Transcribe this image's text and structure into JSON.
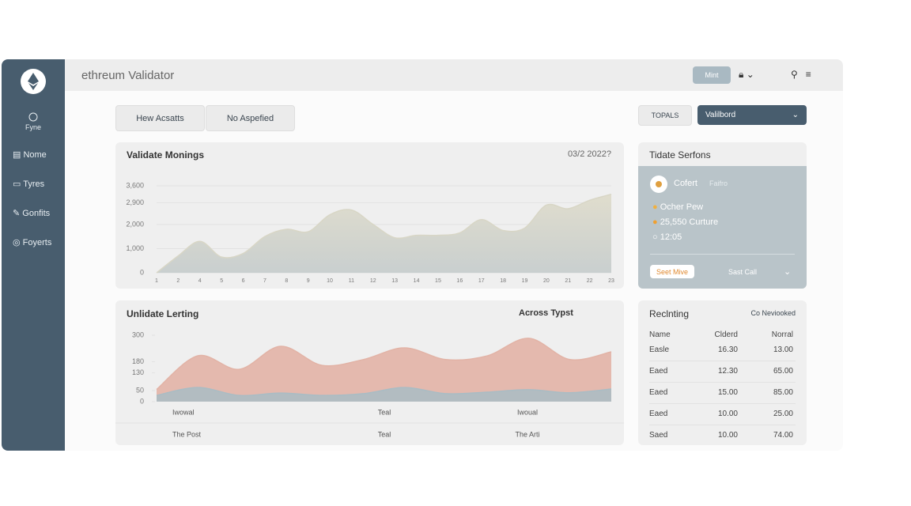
{
  "app": {
    "title": "ethreum Validator",
    "header_button": "Mint"
  },
  "sidebar": {
    "top_label": "Fyne",
    "items": [
      "Nome",
      "Tyres",
      "Gonfits",
      "Foyerts"
    ]
  },
  "toolbar": {
    "buttons": [
      "Hew Acsatts",
      "No Aspefied"
    ],
    "filter": "TOPALS",
    "dropdown": "Valilbord"
  },
  "chart_data": [
    {
      "type": "area",
      "title": "Validate Monings",
      "date": "03/2 2022?",
      "x": [
        1,
        2,
        4,
        5,
        6,
        7,
        8,
        9,
        10,
        11,
        12,
        13,
        14,
        15,
        16,
        17,
        18,
        19,
        20,
        21,
        22,
        23
      ],
      "values": [
        0,
        700,
        1300,
        650,
        800,
        1500,
        1800,
        1700,
        2400,
        2600,
        2000,
        1450,
        1550,
        1550,
        1650,
        2200,
        1750,
        1850,
        2800,
        2650,
        3000,
        3250
      ],
      "color": "#d8d6c6",
      "ylim": [
        0,
        3600
      ],
      "yticks": [
        0,
        {
          "value": 1000,
          "label": "1,000"
        },
        {
          "value": 2000,
          "label": "2,000"
        },
        {
          "value": 2900,
          "label": "2,900"
        },
        {
          "value": 3600,
          "label": "3,600"
        }
      ],
      "grid": true
    },
    {
      "type": "area",
      "title": "Unlidate Lerting",
      "subtitle": "Across Typst",
      "series": [
        {
          "color": "#e2b3a6",
          "values": [
            55,
            207,
            146,
            250,
            164,
            190,
            243,
            190,
            207,
            286,
            190,
            225
          ]
        },
        {
          "color": "#a9bcc4",
          "values": [
            28,
            64,
            28,
            39,
            28,
            36,
            64,
            36,
            43,
            54,
            40,
            57
          ]
        }
      ],
      "ylim": [
        0,
        300
      ],
      "yticks": [
        0,
        50,
        130,
        180,
        300
      ],
      "grid": false,
      "footer_rows": [
        [
          "Iwowal",
          "Teal",
          "Iwoual"
        ],
        [
          "The Post",
          "Teal",
          "The Arti"
        ]
      ]
    }
  ],
  "status_panel": {
    "title": "Tidate Serfons",
    "name": "Cofert",
    "tag": "Faifro",
    "items": [
      "Ocher Pew",
      "25,550 Curture",
      "12:05"
    ],
    "primary_button": "Seet Mive",
    "secondary_button": "Sast Call"
  },
  "recent_panel": {
    "title": "Reclnting",
    "link": "Co Neviooked",
    "table": {
      "header": [
        "Name",
        "Clderd",
        "Norral"
      ],
      "rows": [
        [
          "Easle",
          "16.30",
          "13.00"
        ],
        [
          "Eaed",
          "12.30",
          "65.00"
        ],
        [
          "Eaed",
          "15.00",
          "85.00"
        ],
        [
          "Eaed",
          "10.00",
          "25.00"
        ],
        [
          "Saed",
          "10.00",
          "74.00"
        ]
      ]
    }
  }
}
